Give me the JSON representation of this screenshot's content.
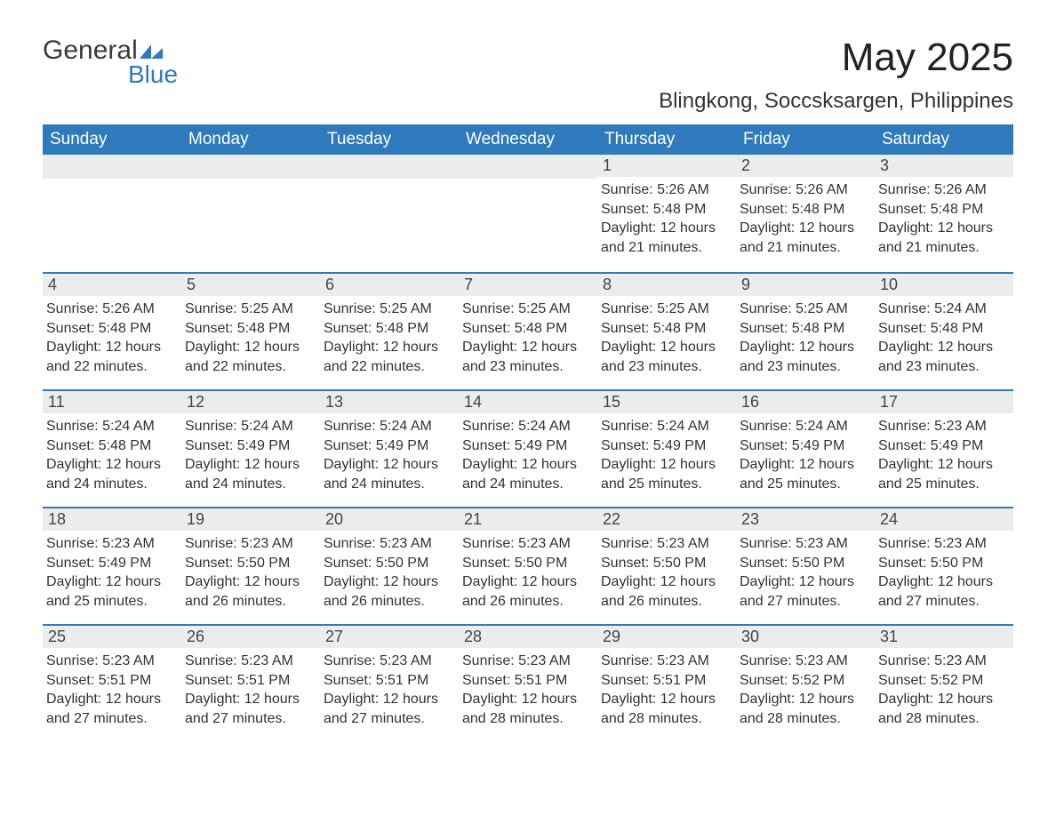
{
  "logo": {
    "word1": "General",
    "word2": "Blue",
    "mark_color": "#2f79bd"
  },
  "title": "May 2025",
  "location": "Blingkong, Soccsksargen, Philippines",
  "colors": {
    "header_bg": "#2f79bd",
    "header_text": "#ffffff",
    "daybar_bg": "#ececec",
    "daybar_border": "#2f79bd",
    "body_text": "#333333",
    "page_bg": "#ffffff"
  },
  "day_headers": [
    "Sunday",
    "Monday",
    "Tuesday",
    "Wednesday",
    "Thursday",
    "Friday",
    "Saturday"
  ],
  "weeks": [
    [
      null,
      null,
      null,
      null,
      {
        "n": "1",
        "sr": "5:26 AM",
        "ss": "5:48 PM",
        "dl": "12 hours and 21 minutes."
      },
      {
        "n": "2",
        "sr": "5:26 AM",
        "ss": "5:48 PM",
        "dl": "12 hours and 21 minutes."
      },
      {
        "n": "3",
        "sr": "5:26 AM",
        "ss": "5:48 PM",
        "dl": "12 hours and 21 minutes."
      }
    ],
    [
      {
        "n": "4",
        "sr": "5:26 AM",
        "ss": "5:48 PM",
        "dl": "12 hours and 22 minutes."
      },
      {
        "n": "5",
        "sr": "5:25 AM",
        "ss": "5:48 PM",
        "dl": "12 hours and 22 minutes."
      },
      {
        "n": "6",
        "sr": "5:25 AM",
        "ss": "5:48 PM",
        "dl": "12 hours and 22 minutes."
      },
      {
        "n": "7",
        "sr": "5:25 AM",
        "ss": "5:48 PM",
        "dl": "12 hours and 23 minutes."
      },
      {
        "n": "8",
        "sr": "5:25 AM",
        "ss": "5:48 PM",
        "dl": "12 hours and 23 minutes."
      },
      {
        "n": "9",
        "sr": "5:25 AM",
        "ss": "5:48 PM",
        "dl": "12 hours and 23 minutes."
      },
      {
        "n": "10",
        "sr": "5:24 AM",
        "ss": "5:48 PM",
        "dl": "12 hours and 23 minutes."
      }
    ],
    [
      {
        "n": "11",
        "sr": "5:24 AM",
        "ss": "5:48 PM",
        "dl": "12 hours and 24 minutes."
      },
      {
        "n": "12",
        "sr": "5:24 AM",
        "ss": "5:49 PM",
        "dl": "12 hours and 24 minutes."
      },
      {
        "n": "13",
        "sr": "5:24 AM",
        "ss": "5:49 PM",
        "dl": "12 hours and 24 minutes."
      },
      {
        "n": "14",
        "sr": "5:24 AM",
        "ss": "5:49 PM",
        "dl": "12 hours and 24 minutes."
      },
      {
        "n": "15",
        "sr": "5:24 AM",
        "ss": "5:49 PM",
        "dl": "12 hours and 25 minutes."
      },
      {
        "n": "16",
        "sr": "5:24 AM",
        "ss": "5:49 PM",
        "dl": "12 hours and 25 minutes."
      },
      {
        "n": "17",
        "sr": "5:23 AM",
        "ss": "5:49 PM",
        "dl": "12 hours and 25 minutes."
      }
    ],
    [
      {
        "n": "18",
        "sr": "5:23 AM",
        "ss": "5:49 PM",
        "dl": "12 hours and 25 minutes."
      },
      {
        "n": "19",
        "sr": "5:23 AM",
        "ss": "5:50 PM",
        "dl": "12 hours and 26 minutes."
      },
      {
        "n": "20",
        "sr": "5:23 AM",
        "ss": "5:50 PM",
        "dl": "12 hours and 26 minutes."
      },
      {
        "n": "21",
        "sr": "5:23 AM",
        "ss": "5:50 PM",
        "dl": "12 hours and 26 minutes."
      },
      {
        "n": "22",
        "sr": "5:23 AM",
        "ss": "5:50 PM",
        "dl": "12 hours and 26 minutes."
      },
      {
        "n": "23",
        "sr": "5:23 AM",
        "ss": "5:50 PM",
        "dl": "12 hours and 27 minutes."
      },
      {
        "n": "24",
        "sr": "5:23 AM",
        "ss": "5:50 PM",
        "dl": "12 hours and 27 minutes."
      }
    ],
    [
      {
        "n": "25",
        "sr": "5:23 AM",
        "ss": "5:51 PM",
        "dl": "12 hours and 27 minutes."
      },
      {
        "n": "26",
        "sr": "5:23 AM",
        "ss": "5:51 PM",
        "dl": "12 hours and 27 minutes."
      },
      {
        "n": "27",
        "sr": "5:23 AM",
        "ss": "5:51 PM",
        "dl": "12 hours and 27 minutes."
      },
      {
        "n": "28",
        "sr": "5:23 AM",
        "ss": "5:51 PM",
        "dl": "12 hours and 28 minutes."
      },
      {
        "n": "29",
        "sr": "5:23 AM",
        "ss": "5:51 PM",
        "dl": "12 hours and 28 minutes."
      },
      {
        "n": "30",
        "sr": "5:23 AM",
        "ss": "5:52 PM",
        "dl": "12 hours and 28 minutes."
      },
      {
        "n": "31",
        "sr": "5:23 AM",
        "ss": "5:52 PM",
        "dl": "12 hours and 28 minutes."
      }
    ]
  ],
  "labels": {
    "sunrise": "Sunrise:",
    "sunset": "Sunset:",
    "daylight": "Daylight:"
  }
}
